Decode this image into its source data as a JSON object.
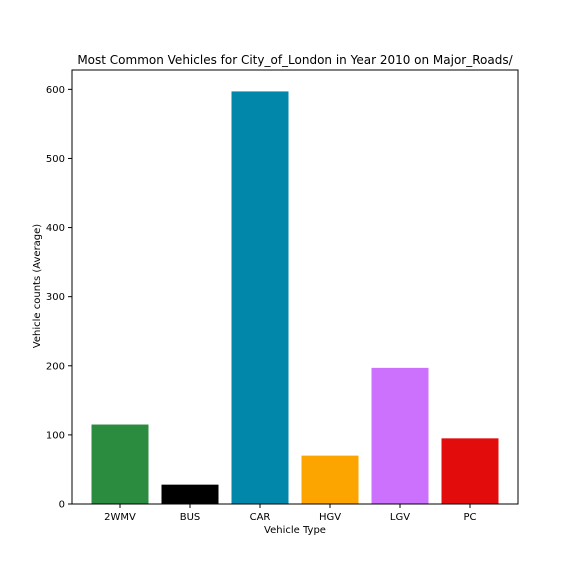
{
  "chart_data": {
    "type": "bar",
    "title": "Most Common Vehicles for City_of_London in Year 2010 on Major_Roads/",
    "xlabel": "Vehicle Type",
    "ylabel": "Vehicle counts (Average)",
    "categories": [
      "2WMV",
      "BUS",
      "CAR",
      "HGV",
      "LGV",
      "PC"
    ],
    "values": [
      115,
      28,
      597,
      70,
      197,
      95
    ],
    "colors": [
      "#2b8c3f",
      "#000000",
      "#0087aa",
      "#fca400",
      "#cc71fd",
      "#e10c0b"
    ],
    "ylim": [
      0,
      628
    ],
    "yticks": [
      0,
      100,
      200,
      300,
      400,
      500,
      600
    ],
    "grid": false,
    "legend": "none"
  }
}
